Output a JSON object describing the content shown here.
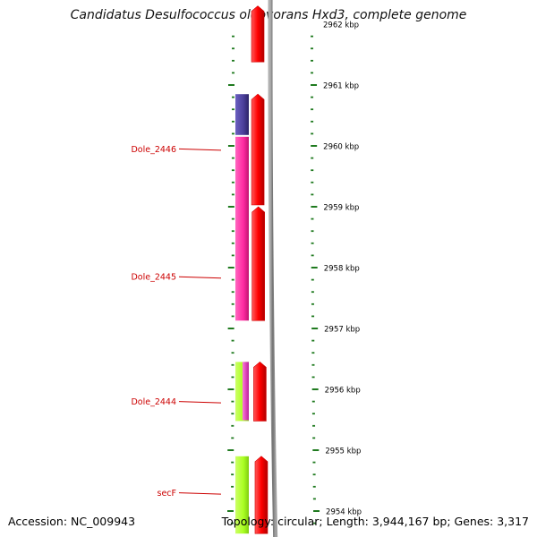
{
  "title": "Candidatus Desulfococcus oleovorans Hxd3, complete genome",
  "footer": {
    "accession": "Accession: NC_009943",
    "topology": "Topology: circular; Length: 3,944,167 bp; Genes: 3,317"
  },
  "colors": {
    "forward_strand": "#ff0000",
    "gene_blue": "#4b3f9a",
    "gene_pink": "#ff2aa0",
    "gene_green": "#aaff22",
    "gene_magenta": "#ee44cc",
    "tick": "#1f7a1f",
    "label_red": "#cc0000",
    "backbone": "#808080"
  },
  "scale_labels": [
    {
      "kbp": 2962,
      "text": "2962 kbp"
    },
    {
      "kbp": 2961,
      "text": "2961 kbp"
    },
    {
      "kbp": 2960,
      "text": "2960 kbp"
    },
    {
      "kbp": 2959,
      "text": "2959 kbp"
    },
    {
      "kbp": 2958,
      "text": "2958 kbp"
    },
    {
      "kbp": 2957,
      "text": "2957 kbp"
    },
    {
      "kbp": 2956,
      "text": "2956 kbp"
    },
    {
      "kbp": 2955,
      "text": "2955 kbp"
    },
    {
      "kbp": 2954,
      "text": "2954 kbp"
    }
  ],
  "gene_labels": [
    {
      "name": "Dole_2446",
      "kbp": 2959.95
    },
    {
      "name": "Dole_2445",
      "kbp": 2957.85
    },
    {
      "name": "Dole_2444",
      "kbp": 2955.8
    },
    {
      "name": "secF",
      "kbp": 2954.3
    }
  ],
  "genes": [
    {
      "track": "inner",
      "start_kbp": 2960.15,
      "end_kbp": 2960.85,
      "color": "gene_blue"
    },
    {
      "track": "inner",
      "start_kbp": 2957.1,
      "end_kbp": 2960.15,
      "color": "gene_pink"
    },
    {
      "track": "inner",
      "start_kbp": 2955.45,
      "end_kbp": 2956.45,
      "color": "gene_green"
    },
    {
      "track": "inner-half",
      "start_kbp": 2955.45,
      "end_kbp": 2956.45,
      "color": "gene_magenta"
    },
    {
      "track": "inner",
      "start_kbp": 2953.6,
      "end_kbp": 2954.9,
      "color": "gene_green"
    },
    {
      "track": "forward",
      "start_kbp": 2961.35,
      "end_kbp": 2962.3,
      "color": "forward_strand"
    },
    {
      "track": "forward",
      "start_kbp": 2959.0,
      "end_kbp": 2960.85,
      "color": "forward_strand"
    },
    {
      "track": "forward",
      "start_kbp": 2957.1,
      "end_kbp": 2959.0,
      "color": "forward_strand"
    },
    {
      "track": "forward",
      "start_kbp": 2955.45,
      "end_kbp": 2956.45,
      "color": "forward_strand"
    },
    {
      "track": "forward",
      "start_kbp": 2953.6,
      "end_kbp": 2954.9,
      "color": "forward_strand"
    }
  ]
}
